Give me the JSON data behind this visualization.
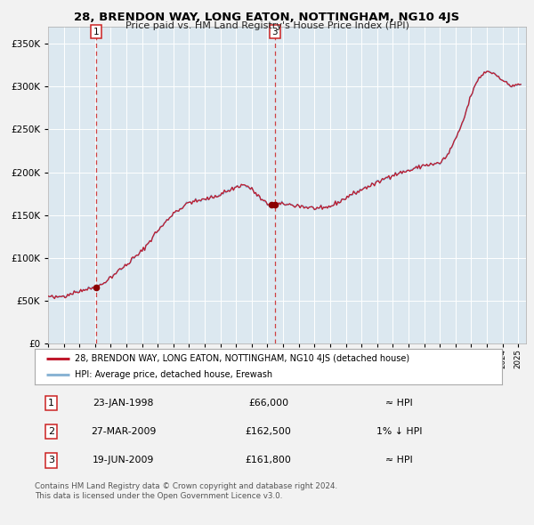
{
  "title": "28, BRENDON WAY, LONG EATON, NOTTINGHAM, NG10 4JS",
  "subtitle": "Price paid vs. HM Land Registry's House Price Index (HPI)",
  "legend_line1": "28, BRENDON WAY, LONG EATON, NOTTINGHAM, NG10 4JS (detached house)",
  "legend_line2": "HPI: Average price, detached house, Erewash",
  "table_rows": [
    {
      "num": "1",
      "date": "23-JAN-1998",
      "price": "£66,000",
      "hpi": "≈ HPI"
    },
    {
      "num": "2",
      "date": "27-MAR-2009",
      "price": "£162,500",
      "hpi": "1% ↓ HPI"
    },
    {
      "num": "3",
      "date": "19-JUN-2009",
      "price": "£161,800",
      "hpi": "≈ HPI"
    }
  ],
  "footnote1": "Contains HM Land Registry data © Crown copyright and database right 2024.",
  "footnote2": "This data is licensed under the Open Government Licence v3.0.",
  "background_color": "#f2f2f2",
  "plot_bg_color": "#dce8f0",
  "grid_color": "#ffffff",
  "hpi_line_color": "#8ab4d4",
  "price_line_color": "#c0192c",
  "dot_color": "#8b0000",
  "vline_color": "#cc2222",
  "ylim": [
    0,
    370000
  ],
  "yticks": [
    0,
    50000,
    100000,
    150000,
    200000,
    250000,
    300000,
    350000
  ],
  "xstart": 1995.0,
  "xend": 2025.5,
  "sale1_year": 1998.06,
  "sale1_price": 66000,
  "sale2_year": 2009.23,
  "sale2_price": 162500,
  "sale3_year": 2009.46,
  "sale3_price": 161800,
  "vline1_year": 1998.06,
  "vline2_year": 2009.46
}
